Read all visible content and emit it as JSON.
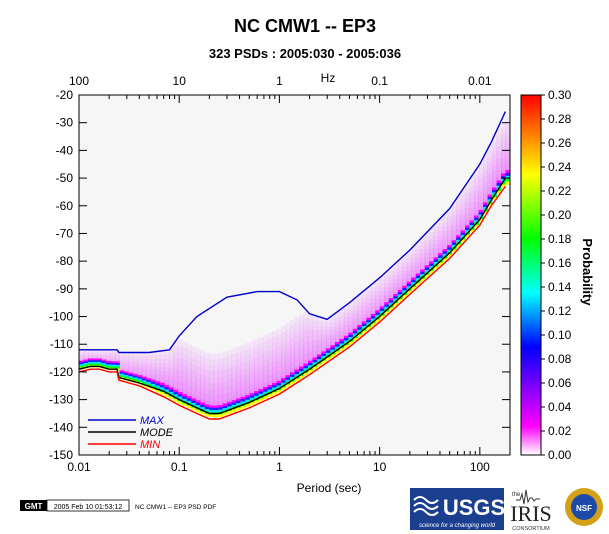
{
  "chart_data": {
    "type": "heatmap",
    "title": "NC CMW1 -- EP3",
    "subtitle": "323 PSDs : 2005:030 - 2005:036",
    "xlabel": "Period (sec)",
    "x_scale": "log",
    "xlim": [
      0.01,
      200
    ],
    "ylim": [
      -150,
      -20
    ],
    "x_ticks": [
      {
        "value": 0.01,
        "label": "0.01"
      },
      {
        "value": 0.1,
        "label": "0.1"
      },
      {
        "value": 1,
        "label": "1"
      },
      {
        "value": 10,
        "label": "10"
      },
      {
        "value": 100,
        "label": "100"
      }
    ],
    "y_ticks": [
      {
        "value": -20,
        "label": "-20"
      },
      {
        "value": -30,
        "label": "-30"
      },
      {
        "value": -40,
        "label": "-40"
      },
      {
        "value": -50,
        "label": "-50"
      },
      {
        "value": -60,
        "label": "-60"
      },
      {
        "value": -70,
        "label": "-70"
      },
      {
        "value": -80,
        "label": "-80"
      },
      {
        "value": -90,
        "label": "-90"
      },
      {
        "value": -100,
        "label": "-100"
      },
      {
        "value": -110,
        "label": "-110"
      },
      {
        "value": -120,
        "label": "-120"
      },
      {
        "value": -130,
        "label": "-130"
      },
      {
        "value": -140,
        "label": "-140"
      },
      {
        "value": -150,
        "label": "-150"
      }
    ],
    "top_axis": {
      "label": "Hz",
      "ticks": [
        {
          "value": 100,
          "label": "100"
        },
        {
          "value": 10,
          "label": "10"
        },
        {
          "value": 1,
          "label": "1"
        },
        {
          "value": 0.1,
          "label": "0.1"
        },
        {
          "value": 0.01,
          "label": "0.01"
        }
      ]
    },
    "colorbar": {
      "label": "Probability",
      "range": [
        0,
        0.3
      ],
      "ticks": [
        "0.00",
        "0.02",
        "0.04",
        "0.06",
        "0.08",
        "0.10",
        "0.12",
        "0.14",
        "0.16",
        "0.18",
        "0.20",
        "0.22",
        "0.24",
        "0.26",
        "0.28",
        "0.30"
      ],
      "colors": [
        "#ffffff",
        "#ff00ff",
        "#0000ff",
        "#00ffff",
        "#00ff00",
        "#ffff00",
        "#ff0000"
      ]
    },
    "series": [
      {
        "name": "MAX",
        "color": "#0000cc",
        "x": [
          0.01,
          0.024,
          0.025,
          0.05,
          0.08,
          0.1,
          0.15,
          0.3,
          0.6,
          1.0,
          1.5,
          2.0,
          3.0,
          5.0,
          10,
          20,
          50,
          100,
          130,
          180
        ],
        "y": [
          -112,
          -112,
          -113,
          -113,
          -112,
          -107,
          -100,
          -93,
          -91,
          -91,
          -94,
          -99,
          -101,
          -95,
          -86,
          -76,
          -61,
          -45,
          -37,
          -26
        ]
      },
      {
        "name": "MODE",
        "color": "#000000",
        "x": [
          0.01,
          0.013,
          0.016,
          0.02,
          0.024,
          0.025,
          0.04,
          0.07,
          0.1,
          0.15,
          0.2,
          0.25,
          0.3,
          0.5,
          1.0,
          2.0,
          5.0,
          10,
          20,
          50,
          100,
          130,
          180
        ],
        "y": [
          -119,
          -118,
          -118,
          -119,
          -119,
          -122,
          -124,
          -127,
          -130,
          -133,
          -135,
          -135,
          -134,
          -131,
          -126,
          -119,
          -109,
          -100,
          -90,
          -77,
          -65,
          -58,
          -50
        ]
      },
      {
        "name": "MIN",
        "color": "#ff0000",
        "x": [
          0.01,
          0.013,
          0.016,
          0.02,
          0.024,
          0.025,
          0.04,
          0.07,
          0.1,
          0.15,
          0.2,
          0.25,
          0.3,
          0.5,
          1.0,
          2.0,
          5.0,
          10,
          20,
          50,
          100,
          130,
          180
        ],
        "y": [
          -120,
          -119,
          -119,
          -120,
          -120,
          -123,
          -125,
          -129,
          -132,
          -135,
          -137,
          -137,
          -136,
          -133,
          -128,
          -121,
          -111,
          -102,
          -92,
          -79,
          -67,
          -60,
          -53
        ]
      }
    ]
  },
  "footer": {
    "gmt_label": "GMT",
    "timestamp": "2005 Feb 10 01:53:12",
    "caption": "NC CMW1 -- EP3 PSD PDF",
    "usgs_text": "USGS",
    "usgs_tagline": "science for a changing world",
    "iris_small": "the",
    "iris_text": "IRIS",
    "iris_sub": "CONSORTIUM",
    "nsf_text": "NSF"
  }
}
